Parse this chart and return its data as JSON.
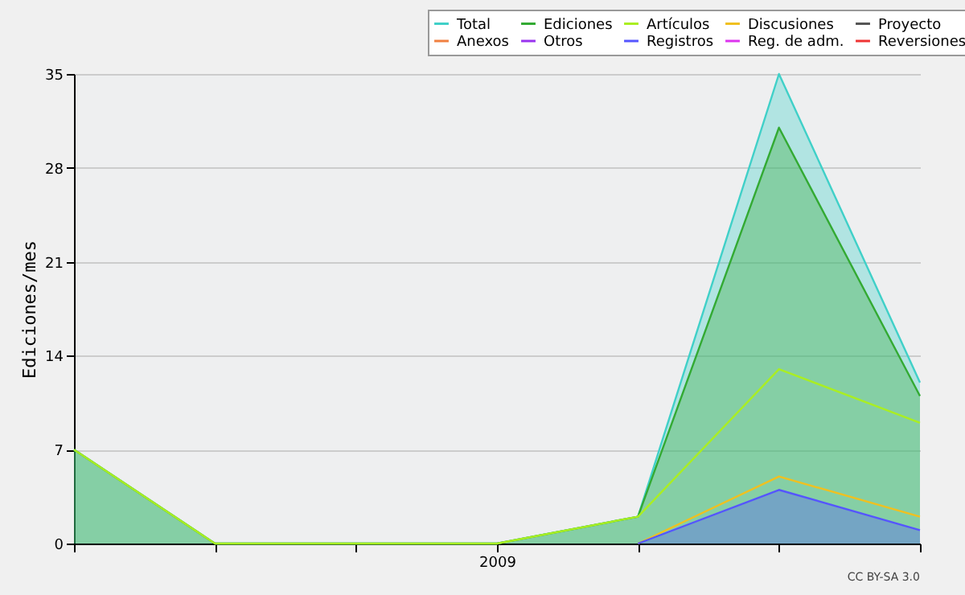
{
  "chart_data": {
    "type": "area",
    "ylabel": "Ediciones/mes",
    "categories": [
      null,
      null,
      null,
      "2009",
      null,
      null,
      null
    ],
    "ylim": [
      0,
      35
    ],
    "yticks": [
      0,
      7,
      14,
      21,
      28,
      35
    ],
    "grid": "y",
    "legend": "top right",
    "annotations": [
      "CC BY-SA 3.0"
    ],
    "series": [
      {
        "name": "Total",
        "color": "#40d0c8",
        "values": [
          7,
          0,
          0,
          0,
          2,
          35,
          12
        ]
      },
      {
        "name": "Ediciones",
        "color": "#33aa33",
        "values": [
          7,
          0,
          0,
          0,
          2,
          31,
          11
        ]
      },
      {
        "name": "Artículos",
        "type": "line",
        "color": "#aaee22",
        "values": [
          7,
          0,
          0,
          0,
          2,
          13,
          9
        ]
      },
      {
        "name": "Discusiones",
        "type": "line",
        "color": "#f0c020",
        "values": [
          null,
          null,
          null,
          null,
          0,
          5,
          2
        ]
      },
      {
        "name": "Proyecto",
        "type": "line",
        "color": "#555555",
        "values": [
          null,
          null,
          null,
          null,
          null,
          null,
          null
        ]
      },
      {
        "name": "Anexos",
        "type": "line",
        "color": "#f08040",
        "values": [
          null,
          null,
          null,
          null,
          null,
          null,
          null
        ]
      },
      {
        "name": "Otros",
        "type": "line",
        "color": "#9933ee",
        "values": [
          null,
          null,
          null,
          null,
          null,
          null,
          null
        ]
      },
      {
        "name": "Registros",
        "color": "#5555ff",
        "values": [
          null,
          null,
          null,
          null,
          0,
          4,
          1
        ]
      },
      {
        "name": "Reg. de adm.",
        "type": "line",
        "color": "#dd33ee",
        "values": [
          null,
          null,
          null,
          null,
          null,
          null,
          null
        ]
      },
      {
        "name": "Reversiones",
        "type": "line",
        "color": "#ee3333",
        "values": [
          null,
          null,
          null,
          null,
          null,
          null,
          null
        ]
      }
    ]
  }
}
